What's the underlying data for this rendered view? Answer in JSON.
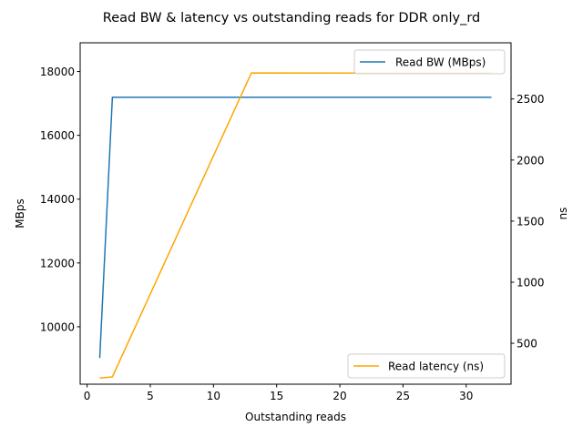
{
  "chart_data": {
    "type": "line",
    "title": "Read BW & latency vs outstanding reads for DDR only_rd",
    "xlabel": "Outstanding reads",
    "ylabel_left": "MBps",
    "ylabel_right": "ns",
    "xlim": [
      -0.55,
      33.55
    ],
    "ylim_left": [
      8200,
      18900
    ],
    "ylim_right": [
      165,
      2960
    ],
    "x_ticks": [
      0,
      5,
      10,
      15,
      20,
      25,
      30
    ],
    "y_ticks_left": [
      10000,
      12000,
      14000,
      16000,
      18000
    ],
    "y_ticks_right": [
      500,
      1000,
      1500,
      2000,
      2500
    ],
    "grid": false,
    "series": [
      {
        "name": "Read BW (MBps)",
        "axis": "left",
        "color": "#1f77b4",
        "legend_position": "upper-right",
        "points": [
          [
            1,
            9020
          ],
          [
            2,
            17190
          ],
          [
            32,
            17190
          ]
        ]
      },
      {
        "name": "Read latency (ns)",
        "axis": "right",
        "color": "#ffa500",
        "legend_position": "lower-right",
        "points": [
          [
            1,
            215
          ],
          [
            2,
            225
          ],
          [
            13,
            2713
          ],
          [
            32,
            2711
          ]
        ]
      }
    ]
  }
}
